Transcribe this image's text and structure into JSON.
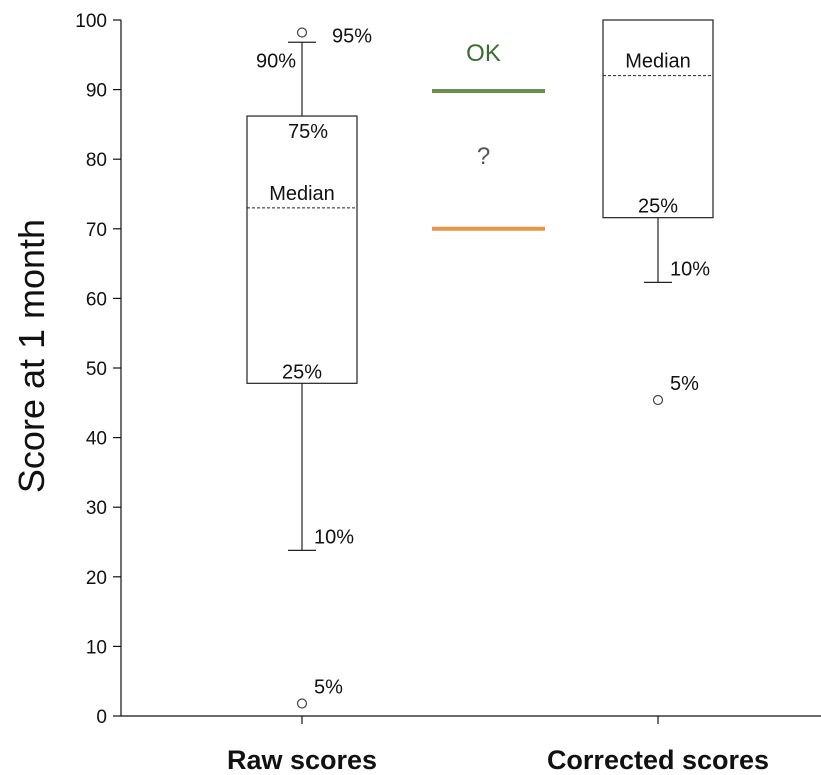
{
  "chart_data": {
    "type": "box",
    "ylabel": "Score at 1 month",
    "xlabel": "",
    "ylim": [
      0,
      100
    ],
    "yticks": [
      0,
      10,
      20,
      30,
      40,
      50,
      60,
      70,
      80,
      90,
      100
    ],
    "grid": false,
    "categories": [
      "Raw scores",
      "Corrected scores"
    ],
    "boxes": [
      {
        "category": "Raw scores",
        "p5": 1.8,
        "p10": 23.8,
        "p25": 47.8,
        "median": 73,
        "p75": 86.2,
        "p90": 96.8,
        "p95": 98.2,
        "labels": {
          "p5": "5%",
          "p10": "10%",
          "p25": "25%",
          "median": "Median",
          "p75": "75%",
          "p90": "90%",
          "p95": "95%"
        }
      },
      {
        "category": "Corrected scores",
        "p5": 45.4,
        "p10": 62.3,
        "p25": 71.6,
        "median": 92,
        "p75": 100,
        "labels": {
          "p5": "5%",
          "p10": "10%",
          "p25": "25%",
          "median": "Median"
        }
      }
    ],
    "reference_lines": [
      {
        "label": "OK",
        "value": 89.8,
        "color": "#6b8e4e",
        "label_color": "#3d6b2e"
      },
      {
        "label": "?",
        "value": 70,
        "color": "#e8954a",
        "label_color": "#555555"
      }
    ]
  }
}
